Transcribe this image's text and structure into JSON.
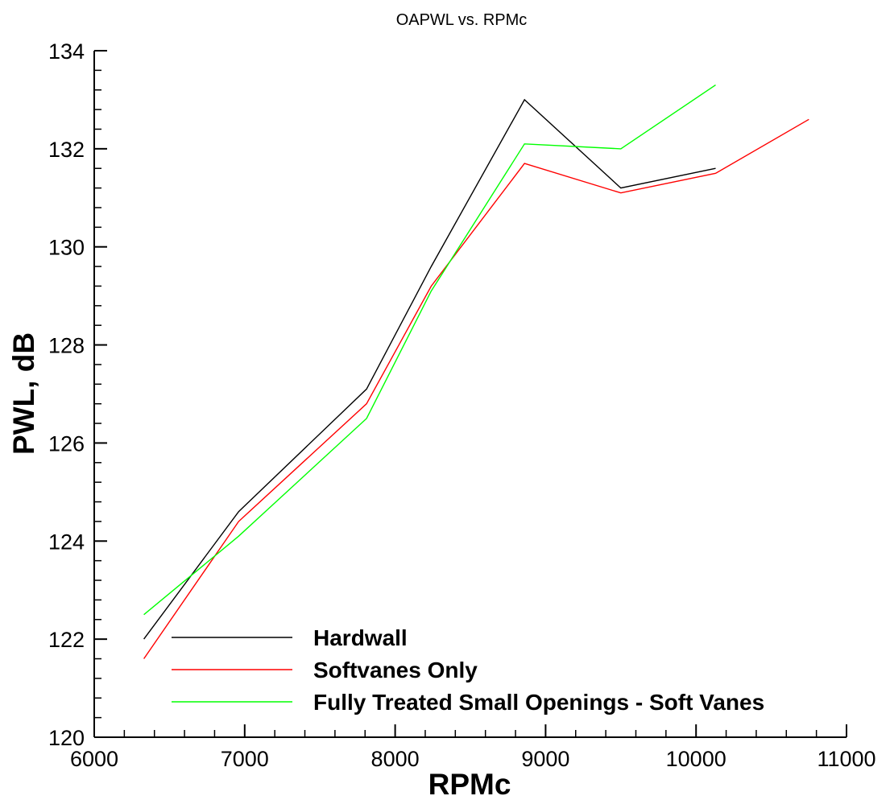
{
  "chart_data": {
    "type": "line",
    "title": "OAPWL vs. RPMc",
    "xlabel": "RPMc",
    "ylabel": "PWL, dB",
    "xlim": [
      6000,
      11000
    ],
    "ylim": [
      120,
      134
    ],
    "x_ticks": [
      6000,
      7000,
      8000,
      9000,
      10000,
      11000
    ],
    "y_ticks": [
      120,
      122,
      124,
      126,
      128,
      130,
      132,
      134
    ],
    "x_minor_step": 200,
    "y_minor_step": 0.4,
    "grid": false,
    "legend_position": "bottom-right",
    "series": [
      {
        "name": "Hardwall",
        "color": "#000000",
        "x": [
          6330,
          6960,
          7810,
          8240,
          8860,
          9500,
          10130
        ],
        "y": [
          122.0,
          124.6,
          127.1,
          129.6,
          133.0,
          131.2,
          131.6
        ]
      },
      {
        "name": "Softvanes Only",
        "color": "#ff0000",
        "x": [
          6330,
          6960,
          7810,
          8240,
          8860,
          9500,
          10130,
          10750
        ],
        "y": [
          121.6,
          124.4,
          126.8,
          129.2,
          131.7,
          131.1,
          131.5,
          132.6
        ]
      },
      {
        "name": "Fully Treated Small Openings - Soft Vanes",
        "color": "#00ff00",
        "x": [
          6330,
          6960,
          7810,
          8240,
          8860,
          9500,
          10130
        ],
        "y": [
          122.5,
          124.1,
          126.5,
          129.1,
          132.1,
          132.0,
          133.3
        ]
      }
    ]
  }
}
